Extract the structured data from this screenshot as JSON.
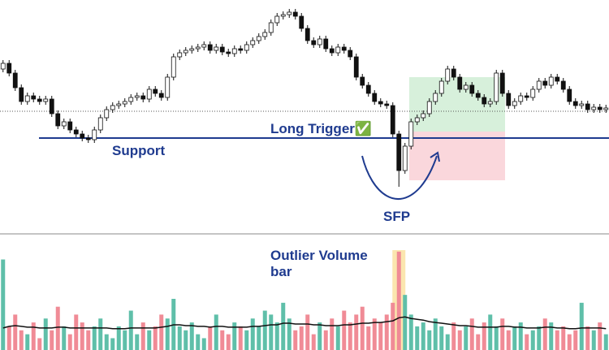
{
  "chart_data": {
    "type": "candlestick",
    "ylim": [
      15,
      300
    ],
    "open": [
      215,
      222,
      210,
      192,
      175,
      182,
      178,
      175,
      178,
      160,
      145,
      150,
      140,
      135,
      130,
      128,
      140,
      155,
      165,
      170,
      172,
      175,
      180,
      182,
      178,
      190,
      185,
      180,
      205,
      230,
      235,
      238,
      240,
      242,
      245,
      238,
      242,
      236,
      234,
      240,
      238,
      245,
      250,
      255,
      260,
      272,
      280,
      282,
      285,
      280,
      265,
      250,
      245,
      252,
      240,
      235,
      242,
      238,
      230,
      205,
      195,
      185,
      175,
      172,
      170,
      135,
      90,
      120,
      150,
      155,
      160,
      175,
      185,
      200,
      215,
      205,
      190,
      195,
      185,
      180,
      172,
      175,
      210,
      185,
      170,
      175,
      182,
      180,
      190,
      200,
      195,
      205,
      200,
      190,
      175,
      170,
      172,
      165,
      168,
      165
    ],
    "high": [
      226,
      226,
      214,
      196,
      186,
      186,
      182,
      182,
      182,
      164,
      154,
      154,
      144,
      139,
      134,
      144,
      159,
      169,
      174,
      176,
      179,
      184,
      186,
      186,
      194,
      194,
      189,
      209,
      234,
      239,
      242,
      244,
      246,
      249,
      249,
      246,
      246,
      240,
      244,
      244,
      249,
      254,
      259,
      264,
      276,
      284,
      286,
      289,
      289,
      284,
      269,
      254,
      256,
      256,
      244,
      246,
      246,
      242,
      234,
      209,
      199,
      189,
      179,
      176,
      174,
      139,
      124,
      154,
      159,
      164,
      179,
      189,
      204,
      219,
      219,
      209,
      199,
      199,
      189,
      184,
      179,
      214,
      214,
      189,
      179,
      186,
      186,
      194,
      204,
      204,
      209,
      209,
      204,
      194,
      179,
      176,
      176,
      172,
      172,
      171
    ],
    "low": [
      211,
      206,
      188,
      171,
      171,
      174,
      171,
      171,
      156,
      141,
      141,
      136,
      131,
      126,
      124,
      124,
      136,
      151,
      161,
      166,
      168,
      171,
      176,
      174,
      174,
      181,
      176,
      176,
      201,
      226,
      231,
      234,
      236,
      238,
      234,
      234,
      232,
      230,
      230,
      234,
      234,
      241,
      246,
      251,
      256,
      268,
      276,
      278,
      276,
      261,
      246,
      241,
      241,
      236,
      231,
      231,
      234,
      226,
      201,
      191,
      181,
      171,
      168,
      166,
      131,
      70,
      86,
      116,
      146,
      151,
      156,
      171,
      181,
      196,
      201,
      186,
      186,
      181,
      176,
      168,
      168,
      171,
      181,
      166,
      166,
      171,
      176,
      176,
      186,
      191,
      191,
      196,
      186,
      171,
      166,
      166,
      161,
      161,
      161,
      161
    ],
    "close": [
      222,
      210,
      192,
      175,
      182,
      178,
      175,
      178,
      160,
      145,
      150,
      140,
      135,
      130,
      128,
      140,
      155,
      165,
      170,
      172,
      175,
      180,
      182,
      178,
      190,
      185,
      180,
      205,
      230,
      235,
      238,
      240,
      242,
      245,
      238,
      242,
      236,
      234,
      240,
      238,
      245,
      250,
      255,
      260,
      272,
      280,
      282,
      285,
      280,
      265,
      250,
      245,
      252,
      240,
      235,
      242,
      238,
      230,
      205,
      195,
      185,
      175,
      172,
      170,
      135,
      90,
      120,
      150,
      155,
      160,
      175,
      185,
      200,
      215,
      205,
      190,
      195,
      185,
      180,
      172,
      175,
      210,
      185,
      170,
      175,
      182,
      180,
      190,
      200,
      195,
      205,
      200,
      190,
      175,
      170,
      172,
      165,
      168,
      165,
      167
    ],
    "volume": {
      "values": [
        115,
        30,
        45,
        25,
        20,
        35,
        15,
        40,
        25,
        55,
        30,
        20,
        45,
        35,
        25,
        30,
        40,
        20,
        15,
        30,
        25,
        50,
        20,
        35,
        25,
        30,
        45,
        40,
        65,
        30,
        25,
        35,
        20,
        15,
        30,
        45,
        25,
        20,
        35,
        30,
        25,
        40,
        30,
        50,
        45,
        35,
        60,
        40,
        25,
        30,
        45,
        20,
        35,
        25,
        40,
        30,
        50,
        35,
        45,
        55,
        30,
        40,
        35,
        45,
        60,
        125,
        70,
        45,
        30,
        35,
        25,
        40,
        30,
        20,
        35,
        25,
        30,
        40,
        20,
        35,
        45,
        30,
        40,
        25,
        30,
        35,
        20,
        25,
        30,
        40,
        35,
        25,
        30,
        20,
        25,
        60,
        30,
        25,
        35,
        20
      ],
      "moving_average": [
        28,
        30,
        31,
        30,
        29,
        29,
        28,
        28,
        28,
        29,
        29,
        28,
        28,
        28,
        28,
        28,
        28,
        28,
        27,
        27,
        27,
        28,
        28,
        28,
        28,
        28,
        29,
        30,
        32,
        32,
        31,
        31,
        30,
        30,
        29,
        30,
        30,
        29,
        29,
        29,
        29,
        30,
        30,
        31,
        32,
        32,
        34,
        34,
        33,
        33,
        33,
        32,
        32,
        31,
        31,
        31,
        32,
        32,
        33,
        34,
        34,
        35,
        35,
        36,
        37,
        41,
        42,
        40,
        39,
        38,
        36,
        35,
        34,
        33,
        32,
        31,
        31,
        30,
        29,
        29,
        29,
        29,
        30,
        30,
        29,
        29,
        28,
        28,
        28,
        29,
        29,
        28,
        28,
        27,
        27,
        28,
        28,
        28,
        28,
        27
      ],
      "ylim": [
        0,
        130
      ],
      "up_color": "#5fbfa9",
      "down_color": "#f08b96"
    },
    "price_line": 163,
    "support": {
      "label": "Support",
      "value": 130
    },
    "long_position": {
      "label": "Long Trigger✅",
      "entry": 138,
      "target": 205,
      "stop": 78
    },
    "annotations": {
      "sfp": "SFP",
      "outlier_volume": "Outlier Volume bar"
    }
  }
}
